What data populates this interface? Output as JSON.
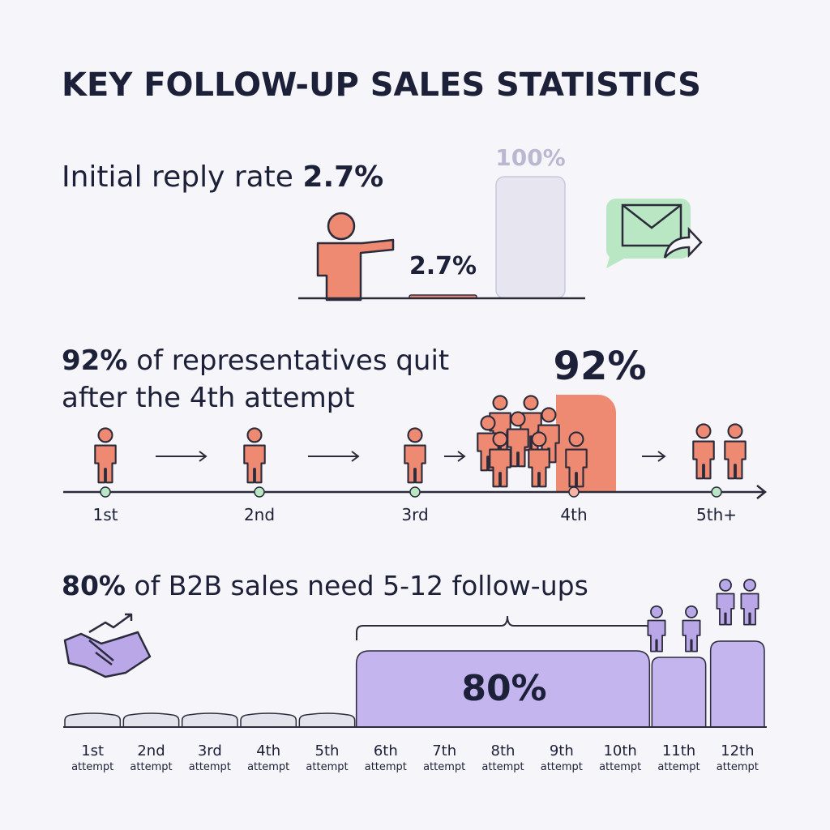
{
  "header": {
    "title": "KEY FOLLOW-UP SALES STATISTICS"
  },
  "reply_rate": {
    "text": "Initial reply rate",
    "highlight": "2.7%",
    "bars": [
      {
        "value": 2.7,
        "label": "2.7%"
      },
      {
        "value": 100,
        "label": "100%"
      }
    ]
  },
  "quit": {
    "highlight": "92%",
    "line1": "of representatives quit",
    "line2": "after the 4th attempt",
    "badge": "92%",
    "attempts": [
      "1st",
      "2nd",
      "3rd",
      "4th",
      "5th+"
    ]
  },
  "followups": {
    "highlight": "80%",
    "text": "of B2B sales need 5-12 follow-ups",
    "badge": "80%",
    "steps": [
      {
        "n": "1st",
        "sub": "attempt"
      },
      {
        "n": "2nd",
        "sub": "attempt"
      },
      {
        "n": "3rd",
        "sub": "attempt"
      },
      {
        "n": "4th",
        "sub": "attempt"
      },
      {
        "n": "5th",
        "sub": "attempt"
      },
      {
        "n": "6th",
        "sub": "attempt"
      },
      {
        "n": "7th",
        "sub": "attempt"
      },
      {
        "n": "8th",
        "sub": "attempt"
      },
      {
        "n": "9th",
        "sub": "attempt"
      },
      {
        "n": "10th",
        "sub": "attempt"
      },
      {
        "n": "11th",
        "sub": "attempt"
      },
      {
        "n": "12th",
        "sub": "attempt"
      }
    ]
  }
}
